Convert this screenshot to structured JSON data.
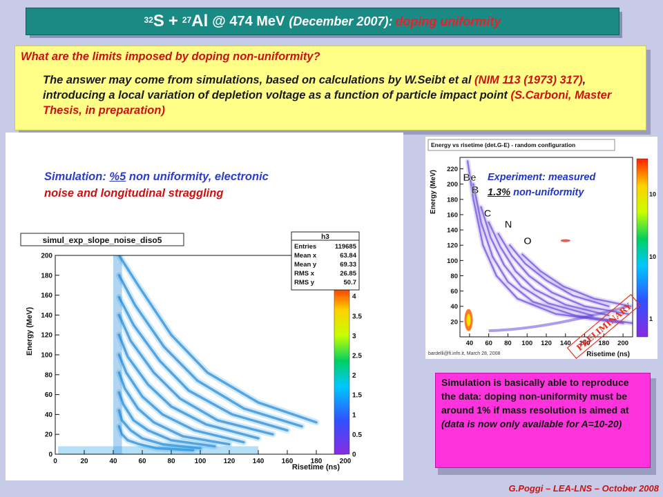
{
  "title": {
    "sulfur_mass": "32",
    "sulfur_symbol": "S",
    "plus": "+",
    "al_mass": "27",
    "al_symbol": "Al",
    "energy": "@ 474 MeV",
    "date": "(December 2007):",
    "topic": "doping uniformity"
  },
  "question_box": {
    "question": "What are the limits imposed by doping non-uniformity?",
    "answer_part1": "The answer may come from simulations, based on calculations by W.Seibt et al ",
    "answer_ref1": "(NIM 113 (1973) 317)",
    "answer_part2": ", introducing a local variation of depletion voltage as a function of particle impact point ",
    "answer_ref2": "(S.Carboni, Master Thesis, in preparation)"
  },
  "sim_caption": {
    "prefix": "Simulation: ",
    "value": "%5",
    "suffix": " non uniformity, electronic",
    "line2": "noise and longitudinal straggling"
  },
  "exp_caption": {
    "prefix": "Experiment: measured",
    "value": "1.3%",
    "suffix": " non-uniformity"
  },
  "conclusion": {
    "main": "Simulation is basically able to reproduce the data: doping non-uniformity must be around 1% if mass resolution is aimed at",
    "note": "(data is now only available for A=10-20)"
  },
  "footer": "G.Poggi – LEA-LNS – October 2008",
  "left_chart": {
    "title": "simul_exp_slope_noise_diso5",
    "stats_name": "h3",
    "stats": [
      {
        "label": "Entries",
        "value": "119685"
      },
      {
        "label": "Mean x",
        "value": "63.84"
      },
      {
        "label": "Mean y",
        "value": "69.33"
      },
      {
        "label": "RMS x",
        "value": "26.85"
      },
      {
        "label": "RMS y",
        "value": "50.7"
      }
    ],
    "xlabel": "Risetime (ns)",
    "ylabel": "Energy (MeV)",
    "x_ticks": [
      "0",
      "20",
      "40",
      "60",
      "80",
      "100",
      "120",
      "140",
      "160",
      "180",
      "200"
    ],
    "y_ticks": [
      "0",
      "20",
      "40",
      "60",
      "80",
      "100",
      "120",
      "140",
      "160",
      "180",
      "200"
    ],
    "color_ticks": [
      "0",
      "0.5",
      "1",
      "1.5",
      "2",
      "2.5",
      "3",
      "3.5",
      "4"
    ],
    "xlim": [
      0,
      200
    ],
    "ylim": [
      0,
      200
    ]
  },
  "right_chart": {
    "title": "Energy vs risetime (det.G-E) - random configuration",
    "xlabel": "Risetime (ns)",
    "ylabel": "Energy (MeV)",
    "x_ticks": [
      "40",
      "60",
      "80",
      "100",
      "120",
      "140",
      "160",
      "180",
      "200"
    ],
    "y_ticks": [
      "20",
      "40",
      "60",
      "80",
      "100",
      "120",
      "140",
      "160",
      "180",
      "200",
      "220"
    ],
    "color_ticks": [
      "10",
      "10",
      "1"
    ],
    "credit": "bardelli@fi.infn.it, March 28, 2008",
    "stamp": "PRELIMINARY",
    "element_labels": [
      "O",
      "N",
      "C",
      "B",
      "Be"
    ],
    "xlim": [
      30,
      210
    ],
    "ylim": [
      0,
      235
    ]
  },
  "colors": {
    "title_bar": "#1a8a85",
    "question_bg": "#ffff88",
    "conclusion_bg": "#ff33dd",
    "accent_red": "#cc1111",
    "accent_blue": "#2c3ccc"
  }
}
